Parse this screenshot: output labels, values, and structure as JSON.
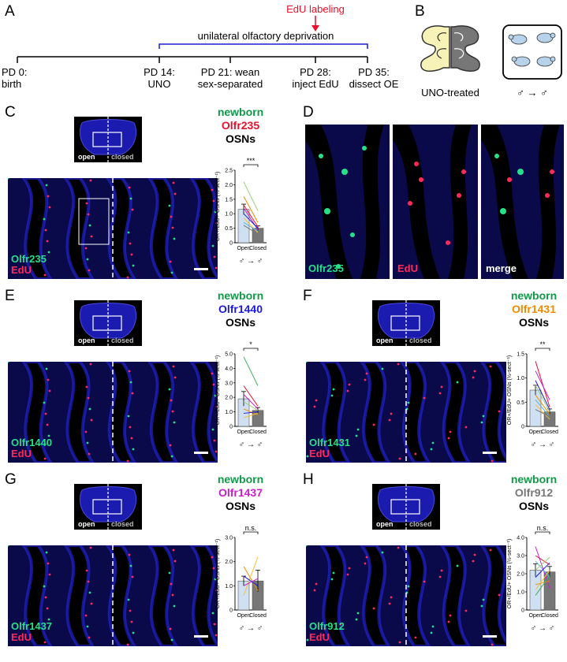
{
  "panel_a": {
    "label": "A",
    "edu_label": "EdU labeling",
    "deprivation_label": "unilateral olfactory deprivation",
    "timepoints": [
      {
        "line1": "PD 0:",
        "line2": "birth"
      },
      {
        "line1": "PD 14:",
        "line2": "UNO"
      },
      {
        "line1": "PD 21: wean",
        "line2": "sex-separated"
      },
      {
        "line1": "PD 28:",
        "line2": "inject EdU"
      },
      {
        "line1": "PD 35:",
        "line2": "dissect OE"
      }
    ]
  },
  "panel_b": {
    "label": "B",
    "uno_label": "UNO-treated",
    "sex_label": "♂ → ♂"
  },
  "thumb": {
    "open": "open",
    "closed": "closed"
  },
  "panels": [
    {
      "label": "C",
      "newborn": "newborn",
      "receptor": "Olfr235",
      "osns": "OSNs",
      "receptor_color": "#e8102a",
      "mic_receptor": "Olfr235",
      "mic_edu": "EdU"
    },
    {
      "label": "E",
      "newborn": "newborn",
      "receptor": "Olfr1440",
      "osns": "OSNs",
      "receptor_color": "#1a1adc",
      "mic_receptor": "Olfr1440",
      "mic_edu": "EdU"
    },
    {
      "label": "F",
      "newborn": "newborn",
      "receptor": "Olfr1431",
      "osns": "OSNs",
      "receptor_color": "#f08a00",
      "mic_receptor": "Olfr1431",
      "mic_edu": "EdU"
    },
    {
      "label": "G",
      "newborn": "newborn",
      "receptor": "Olfr1437",
      "osns": "OSNs",
      "receptor_color": "#c81ec8",
      "mic_receptor": "Olfr1437",
      "mic_edu": "EdU"
    },
    {
      "label": "H",
      "newborn": "newborn",
      "receptor": "Olfr912",
      "osns": "OSNs",
      "receptor_color": "#777777",
      "mic_receptor": "Olfr912",
      "mic_edu": "EdU"
    }
  ],
  "panel_d": {
    "label": "D",
    "sub_labels": [
      "Olfr235",
      "EdU",
      "merge"
    ]
  },
  "colors": {
    "newborn": "#0f9a48",
    "edu": "#e8102a",
    "bar_open": "#cfe0f2",
    "bar_closed": "#777777"
  },
  "chart_data": [
    {
      "panel": "C",
      "type": "bar",
      "categories": [
        "Open",
        "Closed"
      ],
      "values": [
        1.15,
        0.5
      ],
      "errors": [
        0.18,
        0.08
      ],
      "ylim": [
        0,
        2.5
      ],
      "yticks": [
        "0",
        "0.5",
        "1.0",
        "1.5",
        "2.0",
        "2.5"
      ],
      "ylabel": "OR+/EdU+ OSNs (½-sect⁻¹)",
      "significance": "***",
      "sex_label": "♂ → ♂",
      "series": [
        {
          "values": [
            2.1,
            1.1
          ],
          "color": "#9ad07a"
        },
        {
          "values": [
            1.6,
            0.7
          ],
          "color": "#f08a00"
        },
        {
          "values": [
            1.3,
            0.55
          ],
          "color": "#e8102a"
        },
        {
          "values": [
            1.2,
            0.45
          ],
          "color": "#c81ec8"
        },
        {
          "values": [
            1.0,
            0.5
          ],
          "color": "#1a1adc"
        },
        {
          "values": [
            0.85,
            0.35
          ],
          "color": "#f3c23a"
        },
        {
          "values": [
            0.7,
            0.4
          ],
          "color": "#5ab0e6"
        },
        {
          "values": [
            0.6,
            0.3
          ],
          "color": "#777777"
        }
      ]
    },
    {
      "panel": "E",
      "type": "bar",
      "categories": [
        "Open",
        "Closed"
      ],
      "values": [
        1.9,
        1.1
      ],
      "errors": [
        0.5,
        0.2
      ],
      "ylim": [
        0,
        5.0
      ],
      "yticks": [
        "0",
        "1.0",
        "2.0",
        "3.0",
        "4.0",
        "5.0"
      ],
      "ylabel": "OR+/EdU+ OSNs (½-sect⁻¹)",
      "significance": "*",
      "sex_label": "♂ → ♂",
      "series": [
        {
          "values": [
            4.8,
            2.8
          ],
          "color": "#3cb060"
        },
        {
          "values": [
            2.8,
            1.4
          ],
          "color": "#e8102a"
        },
        {
          "values": [
            2.2,
            1.2
          ],
          "color": "#c81ec8"
        },
        {
          "values": [
            1.7,
            1.1
          ],
          "color": "#9ad07a"
        },
        {
          "values": [
            1.2,
            0.8
          ],
          "color": "#f08a00"
        },
        {
          "values": [
            0.9,
            1.0
          ],
          "color": "#1a1adc"
        },
        {
          "values": [
            0.6,
            0.9
          ],
          "color": "#f3c23a"
        }
      ]
    },
    {
      "panel": "F",
      "type": "bar",
      "categories": [
        "Open",
        "Closed"
      ],
      "values": [
        0.75,
        0.3
      ],
      "errors": [
        0.1,
        0.06
      ],
      "ylim": [
        0,
        1.5
      ],
      "yticks": [
        "0",
        "0.5",
        "1.0",
        "1.5"
      ],
      "ylabel": "OR+/EdU+ OSNs (½-sect⁻¹)",
      "significance": "**",
      "sex_label": "♂ → ♂",
      "series": [
        {
          "values": [
            1.35,
            0.4
          ],
          "color": "#e8102a"
        },
        {
          "values": [
            1.15,
            0.55
          ],
          "color": "#c81ec8"
        },
        {
          "values": [
            0.95,
            0.35
          ],
          "color": "#1a1adc"
        },
        {
          "values": [
            0.85,
            0.3
          ],
          "color": "#9ad07a"
        },
        {
          "values": [
            0.65,
            0.25
          ],
          "color": "#f08a00"
        },
        {
          "values": [
            0.55,
            0.2
          ],
          "color": "#5ab0e6"
        },
        {
          "values": [
            0.45,
            0.15
          ],
          "color": "#f3c23a"
        },
        {
          "values": [
            0.35,
            0.2
          ],
          "color": "#777777"
        }
      ]
    },
    {
      "panel": "G",
      "type": "bar",
      "categories": [
        "Open",
        "Closed"
      ],
      "values": [
        1.2,
        1.2
      ],
      "errors": [
        0.2,
        0.45
      ],
      "ylim": [
        0,
        3.0
      ],
      "yticks": [
        "0",
        "1.0",
        "2.0",
        "3.0"
      ],
      "ylabel": "OR+/EdU+ OSNs (½-sect⁻¹)",
      "significance": "n.s.",
      "sex_label": "♂ → ♂",
      "series": [
        {
          "values": [
            1.8,
            0.8
          ],
          "color": "#f08a00"
        },
        {
          "values": [
            0.6,
            2.2
          ],
          "color": "#f3c23a"
        },
        {
          "values": [
            1.4,
            1.0
          ],
          "color": "#1a1adc"
        },
        {
          "values": [
            1.0,
            1.3
          ],
          "color": "#c81ec8"
        }
      ]
    },
    {
      "panel": "H",
      "type": "bar",
      "categories": [
        "Open",
        "Closed"
      ],
      "values": [
        2.2,
        2.1
      ],
      "errors": [
        0.35,
        0.3
      ],
      "ylim": [
        0,
        4.0
      ],
      "yticks": [
        "0",
        "1.0",
        "2.0",
        "3.0",
        "4.0"
      ],
      "ylabel": "OR+/EdU+ OSNs (½-sect⁻¹)",
      "significance": "n.s.",
      "sex_label": "♂ → ♂",
      "series": [
        {
          "values": [
            3.5,
            1.2
          ],
          "color": "#c81ec8"
        },
        {
          "values": [
            3.0,
            2.5
          ],
          "color": "#e8102a"
        },
        {
          "values": [
            2.7,
            1.8
          ],
          "color": "#5ab0e6"
        },
        {
          "values": [
            2.2,
            2.9
          ],
          "color": "#9ad07a"
        },
        {
          "values": [
            1.8,
            2.6
          ],
          "color": "#1a1adc"
        },
        {
          "values": [
            1.4,
            1.6
          ],
          "color": "#f08a00"
        },
        {
          "values": [
            1.1,
            2.2
          ],
          "color": "#f3c23a"
        },
        {
          "values": [
            0.8,
            1.9
          ],
          "color": "#3cb060"
        }
      ]
    }
  ]
}
